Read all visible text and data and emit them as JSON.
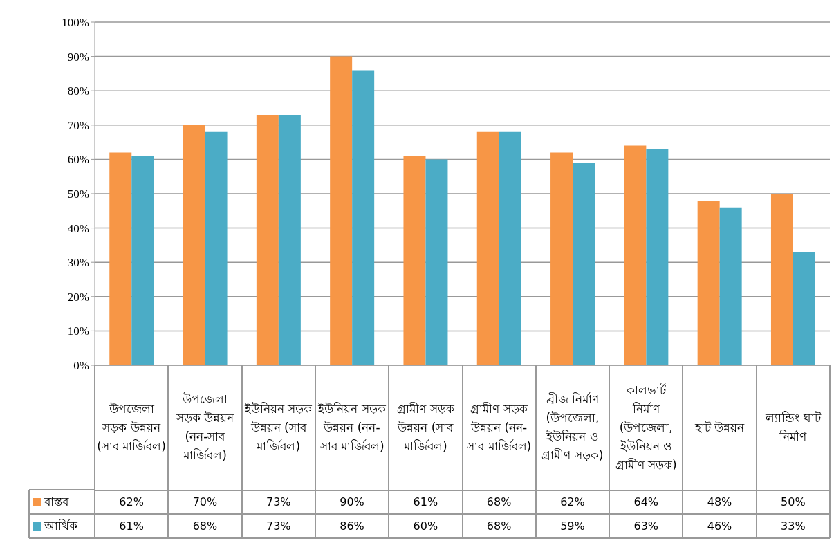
{
  "chart_data": {
    "type": "bar",
    "categories": [
      "উপজেলা সড়ক উন্নয়ন (সাব মার্জিবল)",
      "উপজেলা সড়ক উন্নয়ন (নন-সাব মার্জিবল)",
      "ইউনিয়ন সড়ক উন্নয়ন (সাব মার্জিবল)",
      "ইউনিয়ন সড়ক উন্নয়ন (নন-সাব মার্জিবল)",
      "গ্রামীণ সড়ক উন্নয়ন (সাব মার্জিবল)",
      "গ্রামীণ সড়ক উন্নয়ন (নন-সাব মার্জিবল)",
      "ব্রীজ নির্মাণ (উপজেলা, ইউনিয়ন ও গ্রামীণ সড়ক)",
      "কালভার্ট নির্মাণ (উপজেলা, ইউনিয়ন ও গ্রামীণ সড়ক)",
      "হাট উন্নয়ন",
      "ল্যান্ডিং ঘাট নির্মাণ"
    ],
    "series": [
      {
        "name": "বাস্তব",
        "color": "#f79646",
        "values": [
          62,
          70,
          73,
          90,
          61,
          68,
          62,
          64,
          48,
          50
        ],
        "value_labels": [
          "62%",
          "70%",
          "73%",
          "90%",
          "61%",
          "68%",
          "62%",
          "64%",
          "48%",
          "50%"
        ]
      },
      {
        "name": "আর্থিক",
        "color": "#4bacc6",
        "values": [
          61,
          68,
          73,
          86,
          60,
          68,
          59,
          63,
          46,
          33
        ],
        "value_labels": [
          "61%",
          "68%",
          "73%",
          "86%",
          "60%",
          "68%",
          "59%",
          "63%",
          "46%",
          "33%"
        ]
      }
    ],
    "ylim": [
      0,
      100
    ],
    "yticks": [
      {
        "value": 0,
        "label": "0%"
      },
      {
        "value": 10,
        "label": "10%"
      },
      {
        "value": 20,
        "label": "20%"
      },
      {
        "value": 30,
        "label": "30%"
      },
      {
        "value": 40,
        "label": "40%"
      },
      {
        "value": 50,
        "label": "50%"
      },
      {
        "value": 60,
        "label": "60%"
      },
      {
        "value": 70,
        "label": "70%"
      },
      {
        "value": 80,
        "label": "80%"
      },
      {
        "value": 90,
        "label": "90%"
      },
      {
        "value": 100,
        "label": "100%"
      }
    ],
    "grid": "y",
    "legend": "bottom"
  }
}
